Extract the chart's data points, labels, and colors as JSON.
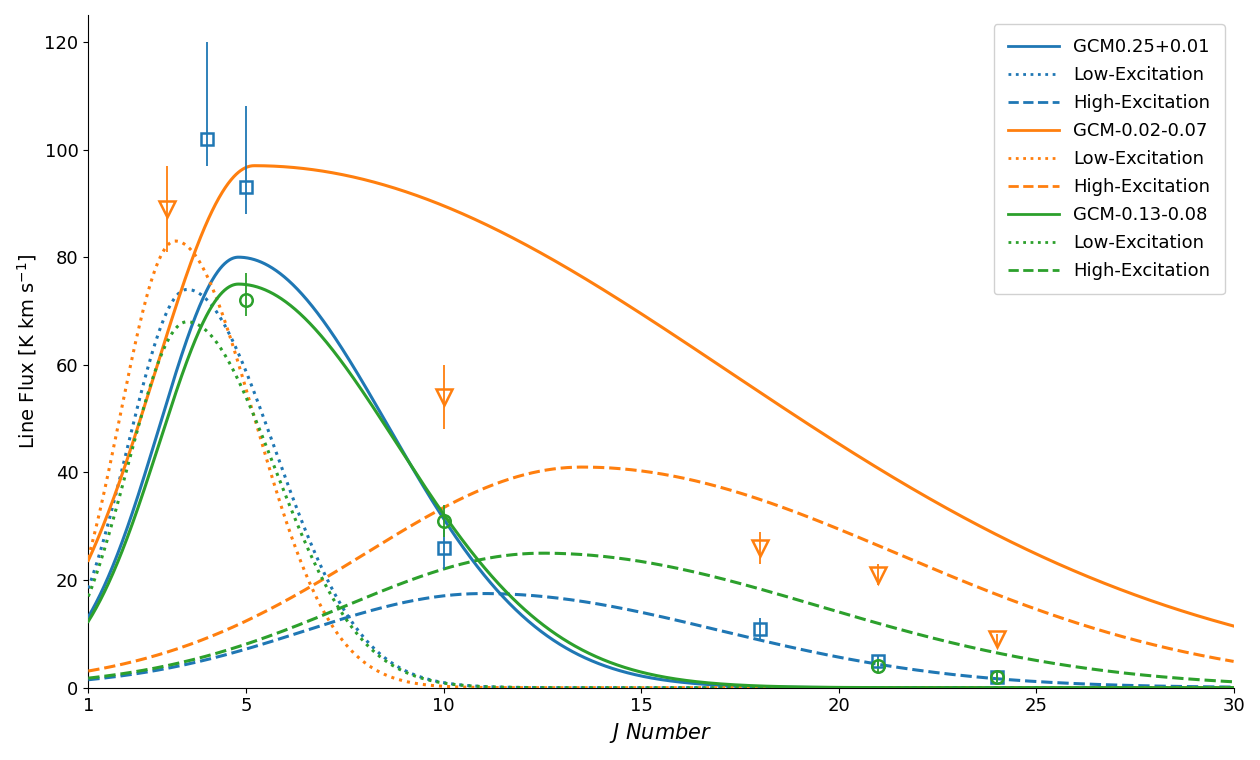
{
  "title": "",
  "xlabel": "$J$ Number",
  "ylabel": "Line Flux [K km s$^{-1}$]",
  "xlim": [
    1,
    30
  ],
  "ylim": [
    0,
    125
  ],
  "xticks": [
    1,
    5,
    10,
    15,
    20,
    25,
    30
  ],
  "yticks": [
    0,
    20,
    40,
    60,
    80,
    100,
    120
  ],
  "colors": {
    "blue": "#1f77b4",
    "orange": "#ff7f0e",
    "green": "#2ca02c"
  },
  "curve_params": {
    "GCM0.25+0.01": {
      "solid": [
        4.8,
        80.0,
        2.0,
        3.8
      ],
      "low": [
        3.5,
        74.0,
        1.5,
        2.2
      ],
      "high": [
        11.0,
        17.5,
        4.5,
        6.0
      ]
    },
    "GCM-0.02-0.07": {
      "solid": [
        5.2,
        97.0,
        2.5,
        12.0
      ],
      "low": [
        3.2,
        83.0,
        1.4,
        2.0
      ],
      "high": [
        13.5,
        41.0,
        5.5,
        8.0
      ]
    },
    "GCM-0.13-0.08": {
      "solid": [
        4.8,
        75.0,
        2.0,
        4.0
      ],
      "low": [
        3.5,
        68.0,
        1.5,
        2.2
      ],
      "high": [
        12.5,
        25.0,
        5.0,
        7.0
      ]
    }
  },
  "sources": [
    {
      "name": "GCM0.25+0.01",
      "color": "#1f77b4",
      "data_x": [
        4,
        5,
        10,
        18,
        21,
        24
      ],
      "data_y": [
        102,
        93,
        26,
        11,
        5,
        2
      ],
      "data_yerr_lo": [
        5,
        5,
        4,
        2,
        1,
        1
      ],
      "data_yerr_hi": [
        18,
        15,
        4,
        2,
        1,
        1
      ],
      "marker": "s"
    },
    {
      "name": "GCM-0.02-0.07",
      "color": "#ff7f0e",
      "data_x": [
        3,
        10,
        18,
        21,
        24
      ],
      "data_y": [
        89,
        54,
        26,
        21,
        9
      ],
      "data_yerr_lo": [
        8,
        6,
        3,
        2,
        1
      ],
      "data_yerr_hi": [
        8,
        6,
        3,
        2,
        1
      ],
      "marker": "v"
    },
    {
      "name": "GCM-0.13-0.08",
      "color": "#2ca02c",
      "data_x": [
        5,
        10,
        21,
        24
      ],
      "data_y": [
        72,
        31,
        4,
        2
      ],
      "data_yerr_lo": [
        3,
        3,
        1,
        1
      ],
      "data_yerr_hi": [
        5,
        3,
        1,
        1
      ],
      "marker": "o"
    }
  ],
  "legend_entries": [
    {
      "label": "GCM0.25+0.01",
      "color": "#1f77b4",
      "ls": "solid"
    },
    {
      "label": "Low-Excitation",
      "color": "#1f77b4",
      "ls": "dotted"
    },
    {
      "label": "High-Excitation",
      "color": "#1f77b4",
      "ls": "dashed"
    },
    {
      "label": "GCM-0.02-0.07",
      "color": "#ff7f0e",
      "ls": "solid"
    },
    {
      "label": "Low-Excitation",
      "color": "#ff7f0e",
      "ls": "dotted"
    },
    {
      "label": "High-Excitation",
      "color": "#ff7f0e",
      "ls": "dashed"
    },
    {
      "label": "GCM-0.13-0.08",
      "color": "#2ca02c",
      "ls": "solid"
    },
    {
      "label": "Low-Excitation",
      "color": "#2ca02c",
      "ls": "dotted"
    },
    {
      "label": "High-Excitation",
      "color": "#2ca02c",
      "ls": "dashed"
    }
  ]
}
